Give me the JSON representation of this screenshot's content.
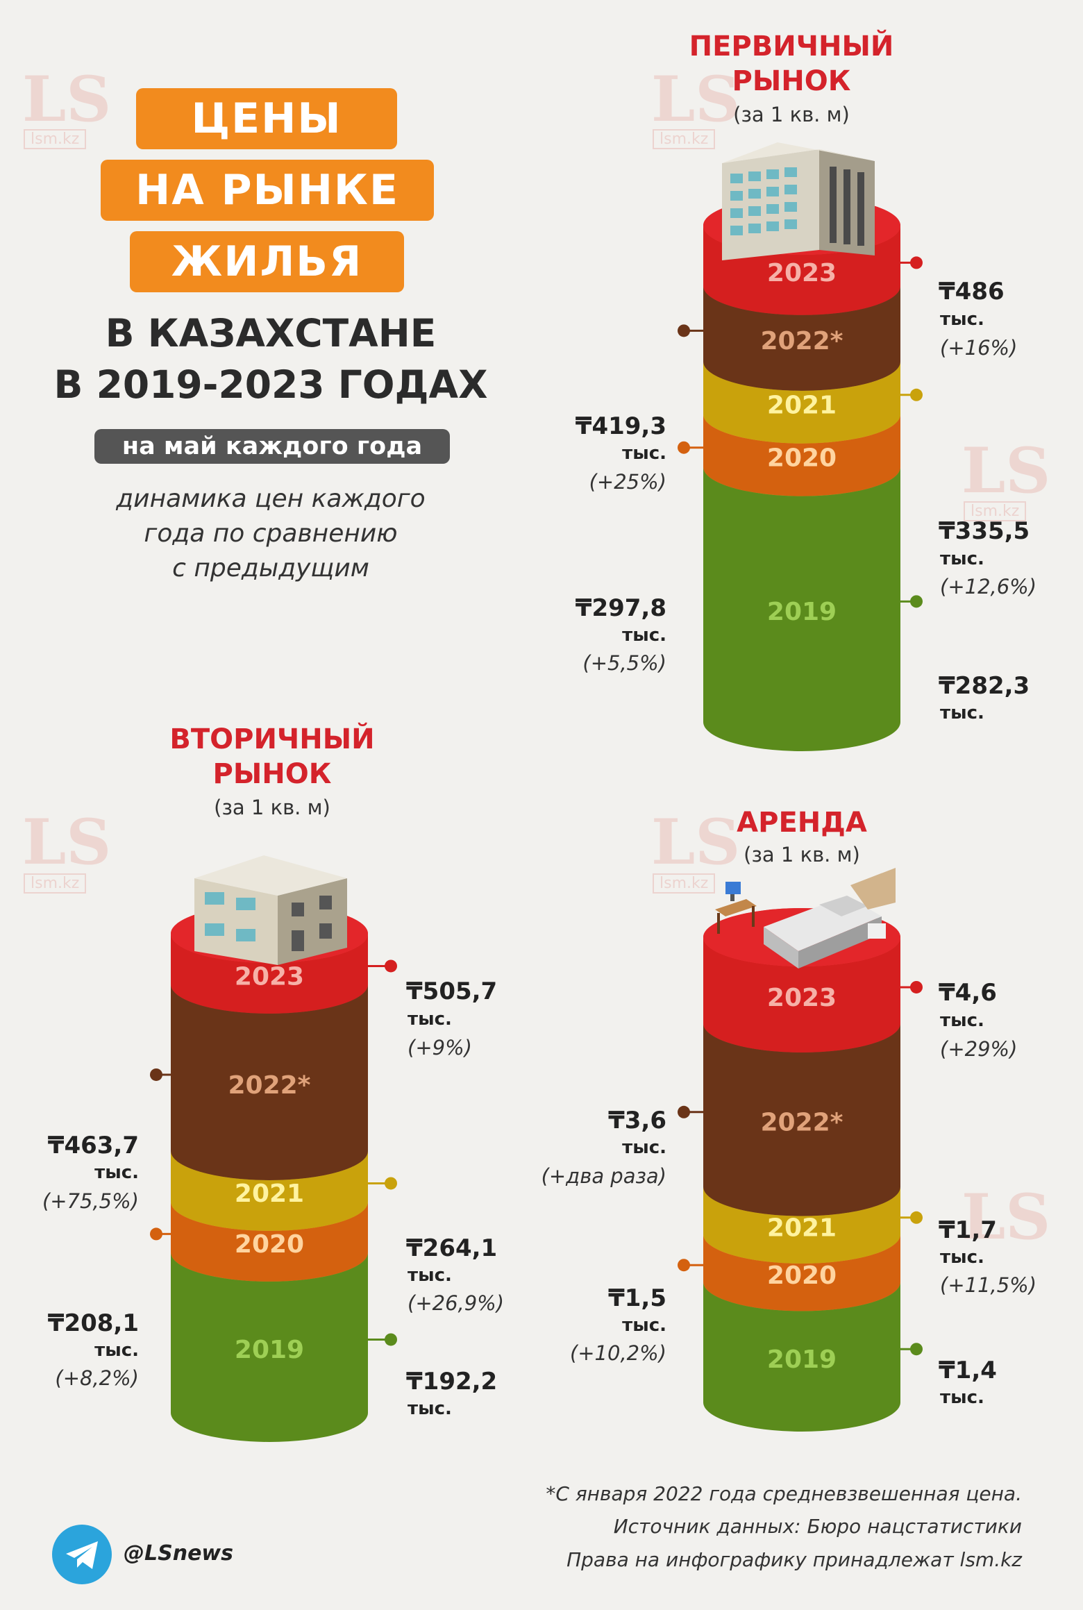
{
  "header": {
    "title_lines": [
      "ЦЕНЫ",
      "НА РЫНКЕ",
      "ЖИЛЬЯ"
    ],
    "subtitle_lines": [
      "В КАЗАХСТАНЕ",
      "В 2019-2023 ГОДАХ"
    ],
    "note": "на май каждого года",
    "description_lines": [
      "динамика цен каждого",
      "года по сравнению",
      "с предыдущим"
    ]
  },
  "watermark": {
    "logo": "LS",
    "site": "lsm.kz"
  },
  "colors": {
    "accent": "#f28b1e",
    "section_title": "#d4232b",
    "y2023": "#d51f1f",
    "y2022": "#6a3418",
    "y2021": "#c9a20c",
    "y2020": "#d4610f",
    "y2019": "#5b8b1c"
  },
  "sections": {
    "primary": {
      "title_lines": [
        "ПЕРВИЧНЫЙ",
        "РЫНОК"
      ],
      "unit": "(за 1 кв. м)",
      "icon": "apartment-building-icon"
    },
    "secondary": {
      "title_lines": [
        "ВТОРИЧНЫЙ",
        "РЫНОК"
      ],
      "unit": "(за 1 кв. м)",
      "icon": "low-rise-house-icon"
    },
    "rent": {
      "title_lines": [
        "АРЕНДА"
      ],
      "unit": "(за 1 кв. м)",
      "icon": "bedroom-furniture-icon"
    }
  },
  "chart_data": [
    {
      "type": "bar",
      "title": "ПЕРВИЧНЫЙ РЫНОК",
      "categories": [
        "2019",
        "2020",
        "2021",
        "2022*",
        "2023"
      ],
      "values": [
        282.3,
        297.8,
        335.5,
        419.3,
        486
      ],
      "value_labels": [
        "₸282,3",
        "₸297,8",
        "₸335,5",
        "₸419,3",
        "₸486"
      ],
      "unit_label": "тыс.",
      "change_labels": [
        "",
        "(+5,5%)",
        "(+12,6%)",
        "(+25%)",
        "(+16%)"
      ]
    },
    {
      "type": "bar",
      "title": "ВТОРИЧНЫЙ РЫНОК",
      "categories": [
        "2019",
        "2020",
        "2021",
        "2022*",
        "2023"
      ],
      "values": [
        192.2,
        208.1,
        264.1,
        463.7,
        505.7
      ],
      "value_labels": [
        "₸192,2",
        "₸208,1",
        "₸264,1",
        "₸463,7",
        "₸505,7"
      ],
      "unit_label": "тыс.",
      "change_labels": [
        "",
        "(+8,2%)",
        "(+26,9%)",
        "(+75,5%)",
        "(+9%)"
      ]
    },
    {
      "type": "bar",
      "title": "АРЕНДА",
      "categories": [
        "2019",
        "2020",
        "2021",
        "2022*",
        "2023"
      ],
      "values": [
        1.4,
        1.5,
        1.7,
        3.6,
        4.6
      ],
      "value_labels": [
        "₸1,4",
        "₸1,5",
        "₸1,7",
        "₸3,6",
        "₸4,6"
      ],
      "unit_label": "тыс.",
      "change_labels": [
        "",
        "(+10,2%)",
        "(+11,5%)",
        "(+два раза)",
        "(+29%)"
      ]
    }
  ],
  "footer": {
    "notes": [
      "*С января 2022 года средневзвешенная цена.",
      "Источник данных: Бюро нацстатистики",
      "Права на инфографику принадлежат lsm.kz"
    ],
    "social_icon": "telegram-icon",
    "handle": "@LSnews"
  }
}
